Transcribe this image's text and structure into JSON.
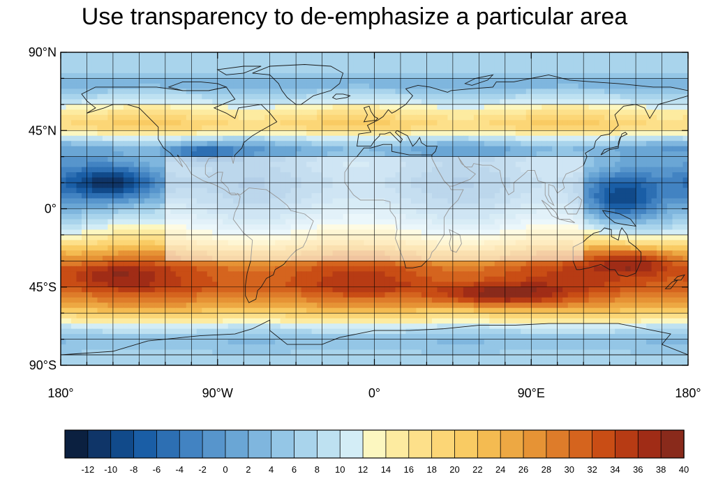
{
  "title": "Use transparency to de-emphasize a particular area",
  "map": {
    "projection": "cylindrical-equidistant",
    "lon_range": [
      -180,
      180
    ],
    "lat_range": [
      -90,
      90
    ],
    "grid_lines": true,
    "coastlines": true,
    "transparent_box": {
      "lon": [
        -120,
        120
      ],
      "lat": [
        -30,
        30
      ]
    },
    "y_ticks": [
      {
        "value": 90,
        "label": "90°N"
      },
      {
        "value": 45,
        "label": "45°N"
      },
      {
        "value": 0,
        "label": "0°"
      },
      {
        "value": -45,
        "label": "45°S"
      },
      {
        "value": -90,
        "label": "90°S"
      }
    ],
    "x_ticks": [
      {
        "value": -180,
        "label": "180°"
      },
      {
        "value": -90,
        "label": "90°W"
      },
      {
        "value": 0,
        "label": "0°"
      },
      {
        "value": 90,
        "label": "90°E"
      },
      {
        "value": 180,
        "label": "180°"
      }
    ],
    "zonal_profile": [
      {
        "lat": 90,
        "value": 6
      },
      {
        "lat": 80,
        "value": 7
      },
      {
        "lat": 72,
        "value": 2
      },
      {
        "lat": 62,
        "value": 10
      },
      {
        "lat": 55,
        "value": 16
      },
      {
        "lat": 48,
        "value": 20
      },
      {
        "lat": 42,
        "value": 12
      },
      {
        "lat": 35,
        "value": 2
      },
      {
        "lat": 25,
        "value": 4
      },
      {
        "lat": 15,
        "value": 2
      },
      {
        "lat": 5,
        "value": 4
      },
      {
        "lat": -5,
        "value": 8
      },
      {
        "lat": -12,
        "value": 12
      },
      {
        "lat": -18,
        "value": 16
      },
      {
        "lat": -25,
        "value": 24
      },
      {
        "lat": -35,
        "value": 32
      },
      {
        "lat": -45,
        "value": 33
      },
      {
        "lat": -55,
        "value": 26
      },
      {
        "lat": -62,
        "value": 18
      },
      {
        "lat": -68,
        "value": 10
      },
      {
        "lat": -75,
        "value": 4
      },
      {
        "lat": -82,
        "value": 6
      },
      {
        "lat": -90,
        "value": 8
      }
    ],
    "anomalies": [
      {
        "lon": -150,
        "lat": 15,
        "value": -13,
        "rlon": 28,
        "rlat": 12
      },
      {
        "lon": -100,
        "lat": 32,
        "value": -5,
        "rlon": 20,
        "rlat": 6
      },
      {
        "lon": 140,
        "lat": 5,
        "value": -9,
        "rlon": 22,
        "rlat": 15
      },
      {
        "lon": 150,
        "lat": -30,
        "value": 38,
        "rlon": 25,
        "rlat": 8
      },
      {
        "lon": 70,
        "lat": -50,
        "value": 40,
        "rlon": 35,
        "rlat": 6
      },
      {
        "lon": -150,
        "lat": -38,
        "value": 37,
        "rlon": 25,
        "rlat": 7
      },
      {
        "lon": 0,
        "lat": -45,
        "value": 34,
        "rlon": 40,
        "rlat": 8
      }
    ]
  },
  "colorbar": {
    "labels": [
      "-12",
      "-10",
      "-8",
      "-6",
      "-4",
      "-2",
      "0",
      "2",
      "4",
      "6",
      "8",
      "10",
      "12",
      "14",
      "16",
      "18",
      "20",
      "22",
      "24",
      "26",
      "28",
      "30",
      "32",
      "34",
      "36",
      "38",
      "40"
    ],
    "colors": [
      "#0b2040",
      "#0f3568",
      "#114a8a",
      "#1a5ea6",
      "#2d6fb3",
      "#4283c2",
      "#5795cc",
      "#6aa6d5",
      "#7fb6de",
      "#94c6e6",
      "#a9d4ec",
      "#bee1f1",
      "#d3edf6",
      "#fcf7c0",
      "#fdeba0",
      "#fde08a",
      "#fcd676",
      "#f9cb63",
      "#f4bb51",
      "#eda843",
      "#e69335",
      "#de7c2a",
      "#d5641e",
      "#c94d15",
      "#b73b14",
      "#a02c16",
      "#892a1b"
    ]
  }
}
